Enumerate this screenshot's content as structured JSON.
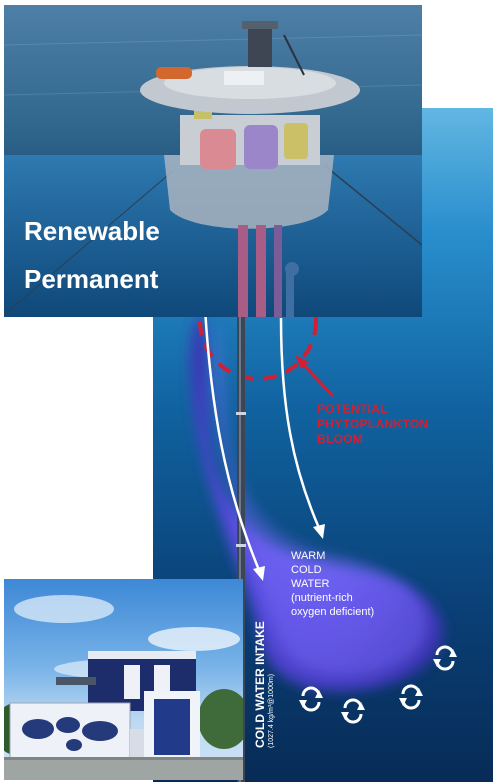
{
  "plant_photo": {
    "line1": "Renewable",
    "line2": "Permanent"
  },
  "ocean_diagram": {
    "bloom_label": "POTENTIAL\nPHYTOPLANKTON\nBLOOM",
    "water_label": "WARM\nCOLD\nWATER\n(nutrient-rich\noxygen deficient)",
    "intake_title": "COLD WATER INTAKE",
    "intake_detail": "(1027.4 kg/m³@1000m)",
    "colors": {
      "bloom_red": "#d31f32",
      "plume": "#5a4be0",
      "deep_water": "#072b56"
    }
  },
  "building_photo": {
    "icons": [
      "solar-panel-icon",
      "world-map-mural-icon"
    ]
  }
}
